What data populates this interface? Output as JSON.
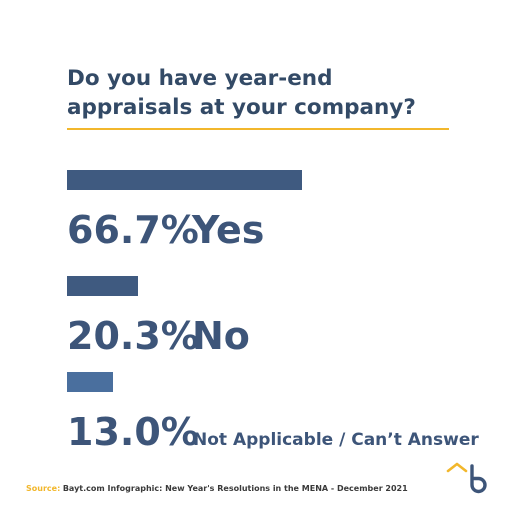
{
  "title": "Do you have year-end appraisals at your company?",
  "colors": {
    "title": "#334a66",
    "accent": "#f2b72c",
    "text": "#3d5579"
  },
  "chart_data": {
    "type": "bar",
    "orientation": "horizontal",
    "title": "Do you have year-end appraisals at your company?",
    "categories": [
      "Yes",
      "No",
      "Not Applicable / Can’t Answer"
    ],
    "values": [
      66.7,
      20.3,
      13.0
    ],
    "value_labels": [
      "66.7%",
      "20.3%",
      "13.0%"
    ],
    "bar_colors": [
      "#3f5a80",
      "#3f5a80",
      "#4a6f9e"
    ],
    "unit": "%",
    "grid": false,
    "legend": "none"
  },
  "source": {
    "label": "Source:",
    "text": "Bayt.com Infographic: New Year's Resolutions in the MENA - December 2021"
  },
  "logo": {
    "icon": "bayt-logo-icon"
  }
}
